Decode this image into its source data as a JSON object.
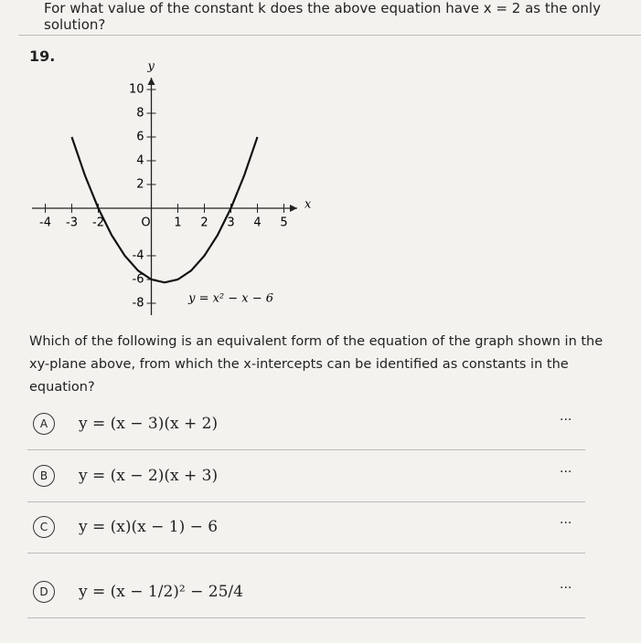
{
  "header": {
    "text": "For what value of the constant k does the above equation have x = 2 as the only solution?"
  },
  "question_number": "19.",
  "graph": {
    "x_label": "x",
    "y_label": "y",
    "curve_label": "y = x² − x − 6",
    "xlim": [
      -4.5,
      5.5
    ],
    "ylim": [
      -9,
      11
    ],
    "xticks": [
      -4,
      -3,
      -2,
      {
        "value": 0,
        "label": "O"
      },
      1,
      2,
      3,
      4,
      5
    ],
    "yticks": [
      10,
      8,
      6,
      4,
      2,
      -4,
      -6,
      -8
    ],
    "x": [
      -3,
      -2.5,
      -2,
      -1.5,
      -1,
      -0.5,
      0,
      0.5,
      1,
      1.5,
      2,
      2.5,
      3,
      3.5,
      4
    ],
    "y": [
      6,
      2.75,
      0,
      -2.25,
      -4,
      -5.25,
      -6,
      -6.25,
      -6,
      -5.25,
      -4,
      -2.25,
      0,
      2.75,
      6
    ]
  },
  "question": "Which of the following is an equivalent form of the equation of the graph shown in the xy-plane above, from which the x-intercepts can be identified as constants in the equation?",
  "choices": [
    {
      "letter": "A",
      "text": "y = (x − 3)(x + 2)",
      "menu": "..."
    },
    {
      "letter": "B",
      "text": "y = (x − 2)(x + 3)",
      "menu": "..."
    },
    {
      "letter": "C",
      "text": "y = (x)(x − 1) − 6",
      "menu": "..."
    },
    {
      "letter": "D",
      "text": "y = (x − 1/2)² − 25/4",
      "menu": "..."
    }
  ]
}
